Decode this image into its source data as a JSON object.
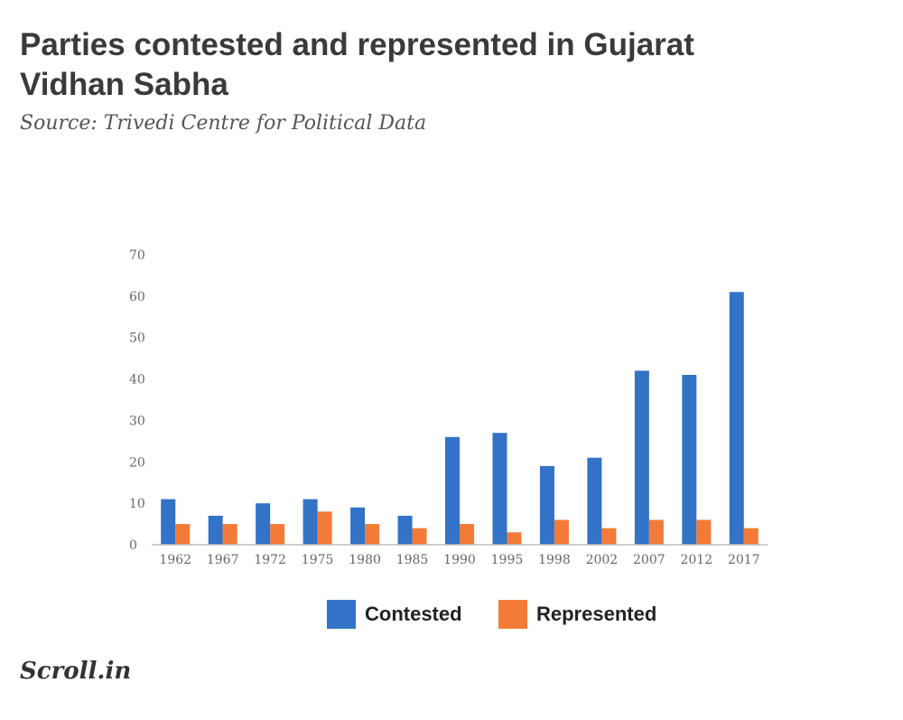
{
  "header": {
    "title": "Parties contested and represented in Gujarat Vidhan Sabha",
    "subtitle": "Source: Trivedi Centre for Political Data"
  },
  "branding": {
    "logo_text": "Scroll.in"
  },
  "colors": {
    "contested": "#3272c7",
    "represented": "#f47a38",
    "axis": "#bfbfbf",
    "tick_text": "#666666"
  },
  "chart_data": {
    "type": "bar",
    "categories": [
      "1962",
      "1967",
      "1972",
      "1975",
      "1980",
      "1985",
      "1990",
      "1995",
      "1998",
      "2002",
      "2007",
      "2012",
      "2017"
    ],
    "series": [
      {
        "name": "Contested",
        "values": [
          11,
          7,
          10,
          11,
          9,
          7,
          26,
          27,
          19,
          21,
          42,
          41,
          61
        ]
      },
      {
        "name": "Represented",
        "values": [
          5,
          5,
          5,
          8,
          5,
          4,
          5,
          3,
          6,
          4,
          6,
          6,
          4
        ]
      }
    ],
    "ylim": [
      0,
      70
    ],
    "yticks": [
      0,
      10,
      20,
      30,
      40,
      50,
      60,
      70
    ],
    "grid": false,
    "legend_position": "bottom"
  }
}
